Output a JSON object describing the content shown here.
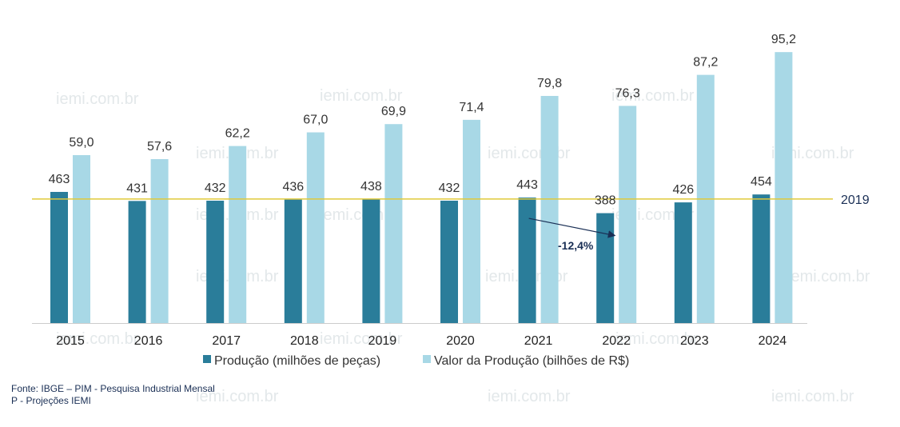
{
  "colors": {
    "producao": "#2a7d9a",
    "valor": "#a8d8e6",
    "reference_line": "#e0c93a",
    "annotation": "#1a2f55",
    "axis": "#cccccc"
  },
  "watermark": "iemi.com.br",
  "chart_data": {
    "type": "bar",
    "categories": [
      "2015",
      "2016",
      "2017",
      "2018",
      "2019",
      "2020",
      "2021",
      "2022",
      "2023",
      "2024"
    ],
    "series": [
      {
        "name": "Produção (milhões de peças)",
        "values": [
          463,
          431,
          432,
          436,
          438,
          432,
          443,
          388,
          426,
          454
        ],
        "labels": [
          "463",
          "431",
          "432",
          "436",
          "438",
          "432",
          "443",
          "388",
          "426",
          "454"
        ]
      },
      {
        "name": "Valor da Produção (bilhões de R$)",
        "values": [
          59.0,
          57.6,
          62.2,
          67.0,
          69.9,
          71.4,
          79.8,
          76.3,
          87.2,
          95.2
        ],
        "labels": [
          "59,0",
          "57,6",
          "62,2",
          "67,0",
          "69,9",
          "71,4",
          "79,8",
          "76,3",
          "87,2",
          "95,2"
        ]
      }
    ],
    "reference_line": {
      "label": "2019",
      "value": 438
    },
    "annotation": {
      "text": "-12,4%",
      "from": "2021",
      "to": "2022"
    },
    "legend_position": "bottom",
    "grid": false
  },
  "source": {
    "line1": "Fonte: IBGE – PIM - Pesquisa Industrial Mensal",
    "line2": "P - Projeções IEMI"
  }
}
